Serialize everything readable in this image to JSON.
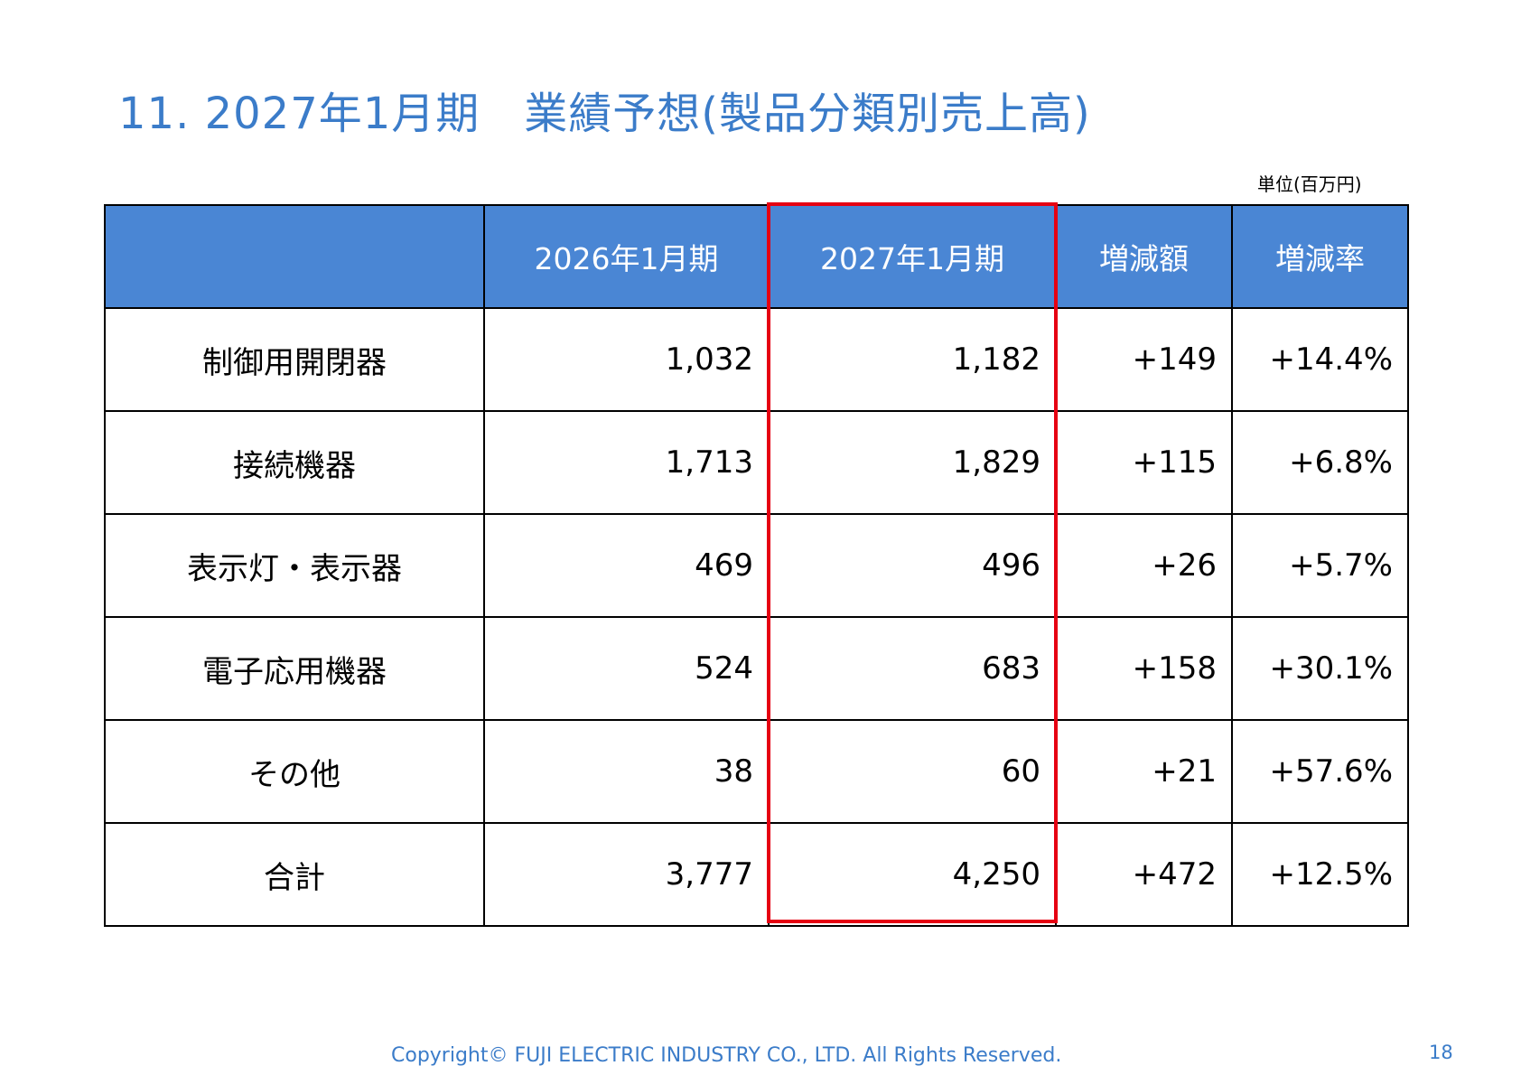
{
  "title": "11. 2027年1月期　業績予想(製品分類別売上高)",
  "unit": "単位(百万円)",
  "table": {
    "headers": [
      "",
      "2026年1月期",
      "2027年1月期",
      "増減額",
      "増減率"
    ],
    "rows": [
      {
        "label": "制御用開閉器",
        "fy2026": "1,032",
        "fy2027": "1,182",
        "diff": "+149",
        "rate": "+14.4%"
      },
      {
        "label": "接続機器",
        "fy2026": "1,713",
        "fy2027": "1,829",
        "diff": "+115",
        "rate": "+6.8%"
      },
      {
        "label": "表示灯・表示器",
        "fy2026": "469",
        "fy2027": "496",
        "diff": "+26",
        "rate": "+5.7%"
      },
      {
        "label": "電子応用機器",
        "fy2026": "524",
        "fy2027": "683",
        "diff": "+158",
        "rate": "+30.1%"
      },
      {
        "label": "その他",
        "fy2026": "38",
        "fy2027": "60",
        "diff": "+21",
        "rate": "+57.6%"
      },
      {
        "label": "合計",
        "fy2026": "3,777",
        "fy2027": "4,250",
        "diff": "+472",
        "rate": "+12.5%"
      }
    ]
  },
  "colors": {
    "title": "#3b7cc9",
    "header_bg": "#4a86d4",
    "highlight_border": "#e60012"
  },
  "footer": {
    "copyright": "Copyright© FUJI ELECTRIC INDUSTRY CO., LTD. All Rights Reserved.",
    "page_number": "18"
  }
}
